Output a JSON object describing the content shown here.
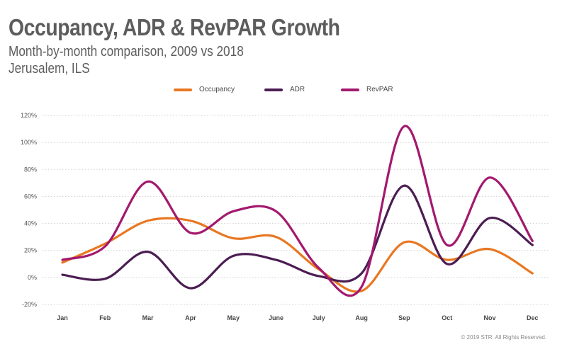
{
  "title": "Occupancy, ADR & RevPAR Growth",
  "subtitle": "Month-by-month comparison, 2009 vs 2018",
  "location": "Jerusalem, ILS",
  "copyright": "© 2019 STR. All Rights Reserved.",
  "chart_data": {
    "type": "line",
    "title": "Occupancy, ADR & RevPAR Growth",
    "xlabel": "",
    "ylabel": "",
    "categories": [
      "Jan",
      "Feb",
      "Mar",
      "Apr",
      "May",
      "June",
      "July",
      "Aug",
      "Sep",
      "Oct",
      "Nov",
      "Dec"
    ],
    "ylim": [
      -20,
      120
    ],
    "yticks": [
      -20,
      0,
      20,
      40,
      60,
      80,
      100,
      120
    ],
    "ytick_labels": [
      "-20%",
      "0%",
      "20%",
      "40%",
      "60%",
      "80%",
      "100%",
      "120%"
    ],
    "grid": true,
    "legend_position": "top-center",
    "series": [
      {
        "name": "Occupancy",
        "color": "#e87722",
        "values": [
          11,
          25,
          42,
          42,
          29,
          30,
          6,
          -10,
          26,
          13,
          21,
          3
        ]
      },
      {
        "name": "ADR",
        "color": "#4b1d52",
        "values": [
          2,
          -1,
          19,
          -8,
          16,
          13,
          1,
          3,
          68,
          10,
          44,
          24
        ]
      },
      {
        "name": "RevPAR",
        "color": "#a3196e",
        "values": [
          13,
          23,
          71,
          33,
          49,
          49,
          7,
          -7,
          112,
          24,
          74,
          27
        ]
      }
    ]
  }
}
